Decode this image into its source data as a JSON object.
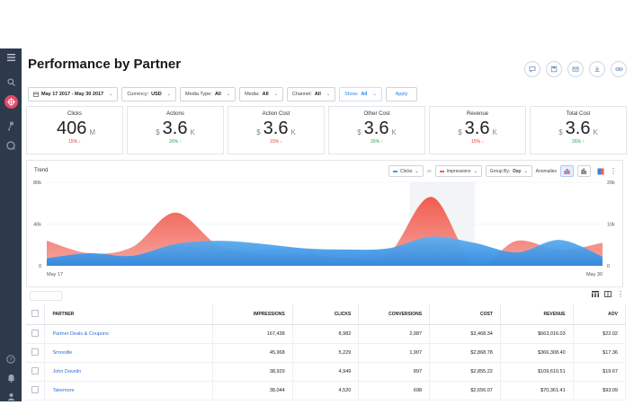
{
  "page": {
    "title": "Performance by Partner"
  },
  "filters": {
    "date_range": "May 17 2017 - May 30 2017",
    "currency_label": "Currency:",
    "currency_value": "USD",
    "media_type_label": "Media Type:",
    "media_type_value": "All",
    "media_label": "Media:",
    "media_value": "All",
    "channel_label": "Channel:",
    "channel_value": "All",
    "show_label": "Show:",
    "show_value": "All",
    "apply_label": "Apply"
  },
  "metrics": [
    {
      "label": "Clicks",
      "currency": "",
      "value": "406",
      "unit": "M",
      "delta": "15%",
      "direction": "down"
    },
    {
      "label": "Actions",
      "currency": "$",
      "value": "3.6",
      "unit": "K",
      "delta": "26%",
      "direction": "up"
    },
    {
      "label": "Action Cost",
      "currency": "$",
      "value": "3.6",
      "unit": "K",
      "delta": "15%",
      "direction": "down"
    },
    {
      "label": "Other Cost",
      "currency": "$",
      "value": "3.6",
      "unit": "K",
      "delta": "26%",
      "direction": "up"
    },
    {
      "label": "Revenue",
      "currency": "$",
      "value": "3.6",
      "unit": "K",
      "delta": "15%",
      "direction": "down"
    },
    {
      "label": "Total Cost",
      "currency": "$",
      "value": "3.6",
      "unit": "K",
      "delta": "26%",
      "direction": "up"
    }
  ],
  "trend": {
    "title": "Trend",
    "series_a_label": "Clicks",
    "vs_label": "vs",
    "series_b_label": "Impressions",
    "group_by_label": "Group By:",
    "group_by_value": "Day",
    "anomalies_label": "Anomalies",
    "colors": {
      "clicks": "#3b9be8",
      "impressions": "#f25c4f"
    }
  },
  "chart_data": {
    "type": "area",
    "x_start_label": "May 17",
    "x_end_label": "May 30",
    "yticks_left": [
      "80k",
      "40k",
      "0"
    ],
    "yticks_right": [
      "20k",
      "10k",
      "0"
    ],
    "ylim_left": [
      0,
      80000
    ],
    "ylim_right": [
      0,
      20000
    ],
    "series": [
      {
        "name": "Impressions",
        "axis": "left",
        "values": [
          24000,
          12000,
          18000,
          51000,
          20000,
          11000,
          11000,
          8000,
          12000,
          66000,
          2000,
          24000,
          15000,
          22000
        ]
      },
      {
        "name": "Clicks",
        "axis": "right",
        "values": [
          1800,
          3000,
          2400,
          5200,
          6000,
          5300,
          4200,
          3900,
          4200,
          7000,
          5500,
          3200,
          6200,
          2200
        ]
      }
    ]
  },
  "table": {
    "columns": [
      "PARTNER",
      "IMPRESSIONS",
      "CLICKS",
      "CONVERSIONS",
      "COST",
      "REVENUE",
      "AOV"
    ],
    "rows": [
      [
        "Partner Deals & Coupons",
        "167,438",
        "8,982",
        "2,987",
        "$3,468.34",
        "$663,016.03",
        "$22.02"
      ],
      [
        "Smoodle",
        "45,968",
        "5,229",
        "1,907",
        "$2,868.78",
        "$366,308.40",
        "$17.36"
      ],
      [
        "John Davelin",
        "38,929",
        "4,949",
        "897",
        "$2,855.22",
        "$109,610.51",
        "$19.67"
      ],
      [
        "Takemore",
        "38,044",
        "4,520",
        "698",
        "$2,656.07",
        "$70,361.41",
        "$93.09"
      ]
    ]
  }
}
